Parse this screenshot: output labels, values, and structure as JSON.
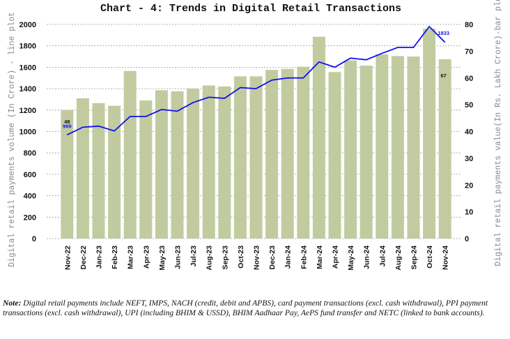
{
  "chart_data": {
    "type": "bar+line",
    "title": "Chart - 4: Trends in Digital Retail Transactions",
    "ylabel_left": "Digital retail payments volume (In Crore) - line plot",
    "ylabel_right": "Digital retail payments value(In Rs. Lakh Crore)-bar plot",
    "categories": [
      "Nov-22",
      "Dec-22",
      "Jan-23",
      "Feb-23",
      "Mar-23",
      "Apr-23",
      "May-23",
      "Jun-23",
      "Jul-23",
      "Aug-23",
      "Sep-23",
      "Oct-23",
      "Nov-23",
      "Dec-23",
      "Jan-24",
      "Feb-24",
      "Mar-24",
      "Apr-24",
      "May-24",
      "Jun-24",
      "Jul-24",
      "Aug-24",
      "Sep-24",
      "Oct-24",
      "Nov-24"
    ],
    "ylim_left": [
      0,
      2000
    ],
    "yticks_left": [
      0,
      200,
      400,
      600,
      800,
      1000,
      1200,
      1400,
      1600,
      1800,
      2000
    ],
    "ylim_right": [
      0,
      80
    ],
    "yticks_right": [
      0,
      10,
      20,
      30,
      40,
      50,
      60,
      70,
      80
    ],
    "grid": true,
    "series": [
      {
        "name": "Value (Rs. Lakh Crore)",
        "type": "bar",
        "axis": "right",
        "color": "#c2cba0",
        "values": [
          48,
          52.4,
          50.6,
          49.6,
          62.6,
          51.6,
          55.4,
          55,
          56,
          57.2,
          56.8,
          60.6,
          60.6,
          63,
          63.4,
          64.2,
          75.4,
          62.2,
          66.6,
          64.6,
          68.8,
          68.2,
          68,
          78.4,
          67
        ]
      },
      {
        "name": "Volume (Crore)",
        "type": "line",
        "axis": "left",
        "color": "#1010ee",
        "values": [
          969,
          1040,
          1050,
          1005,
          1140,
          1140,
          1205,
          1190,
          1270,
          1320,
          1310,
          1410,
          1400,
          1480,
          1500,
          1500,
          1650,
          1600,
          1685,
          1670,
          1730,
          1785,
          1785,
          1980,
          1833
        ]
      }
    ],
    "annotations": {
      "first_bar": "48",
      "first_line": "969",
      "last_line": "1833",
      "last_bar": "67"
    }
  },
  "note": {
    "label": "Note:",
    "text": " Digital retail payments include NEFT, IMPS, NACH (credit, debit and APBS), card payment transactions (excl. cash withdrawal), PPI payment transactions (excl. cash withdrawal), UPI (including BHIM & USSD), BHIM Aadhaar Pay, AePS fund transfer and NETC (linked to bank accounts)."
  }
}
